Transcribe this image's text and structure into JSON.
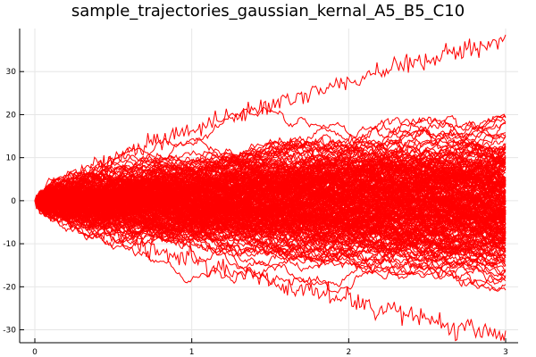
{
  "chart_data": {
    "type": "line",
    "title": "sample_trajectories_gaussian_kernal_A5_B5_C10",
    "xlabel": "",
    "ylabel": "",
    "xlim": [
      0,
      3
    ],
    "ylim": [
      -33,
      40
    ],
    "x_ticks": [
      0,
      1,
      2,
      3
    ],
    "y_ticks": [
      -30,
      -20,
      -10,
      0,
      10,
      20,
      30
    ],
    "grid": true,
    "legend": "none",
    "line_color": "#ff0000",
    "series_count": 250,
    "steps_per_series": 300,
    "start_value": 0,
    "spread_std_at_x3": 8.5,
    "extremes": {
      "max_y": 37.5,
      "min_y": -31.5
    }
  }
}
